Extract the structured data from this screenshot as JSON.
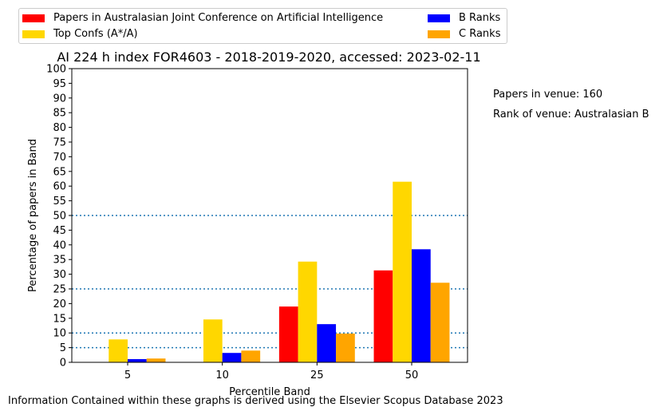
{
  "chart_data": {
    "type": "bar",
    "title": "AI 224 h index FOR4603 - 2018-2019-2020, accessed: 2023-02-11",
    "xlabel": "Percentile Band",
    "ylabel": "Percentage of papers in Band",
    "categories": [
      "5",
      "10",
      "25",
      "50"
    ],
    "ylim": [
      0,
      100
    ],
    "yticks": [
      0,
      5,
      10,
      15,
      20,
      25,
      30,
      35,
      40,
      45,
      50,
      55,
      60,
      65,
      70,
      75,
      80,
      85,
      90,
      95,
      100
    ],
    "reference_lines": [
      5,
      10,
      25,
      50
    ],
    "grid": false,
    "legend_position": "top, outside plot",
    "series": [
      {
        "name": "Papers in Australasian Joint Conference on Artificial Intelligence",
        "color": "#ff0000",
        "values": [
          0,
          0,
          19,
          31.3
        ]
      },
      {
        "name": "Top Confs (A*/A)",
        "color": "#ffd700",
        "values": [
          7.8,
          14.6,
          34.3,
          61.5
        ]
      },
      {
        "name": "B Ranks",
        "color": "#0000ff",
        "values": [
          1.1,
          3.2,
          13,
          38.5
        ]
      },
      {
        "name": "C Ranks",
        "color": "#ffa500",
        "values": [
          1.3,
          4,
          9.8,
          27.1
        ]
      }
    ]
  },
  "annotations": {
    "papers_in_venue": "Papers in venue: 160",
    "rank_of_venue": "Rank of venue: Australasian B"
  },
  "footer": "Information Contained within these graphs is derived using the Elsevier Scopus Database 2023",
  "colors": {
    "reference_line": "#1f77b4",
    "axis": "#000000"
  }
}
